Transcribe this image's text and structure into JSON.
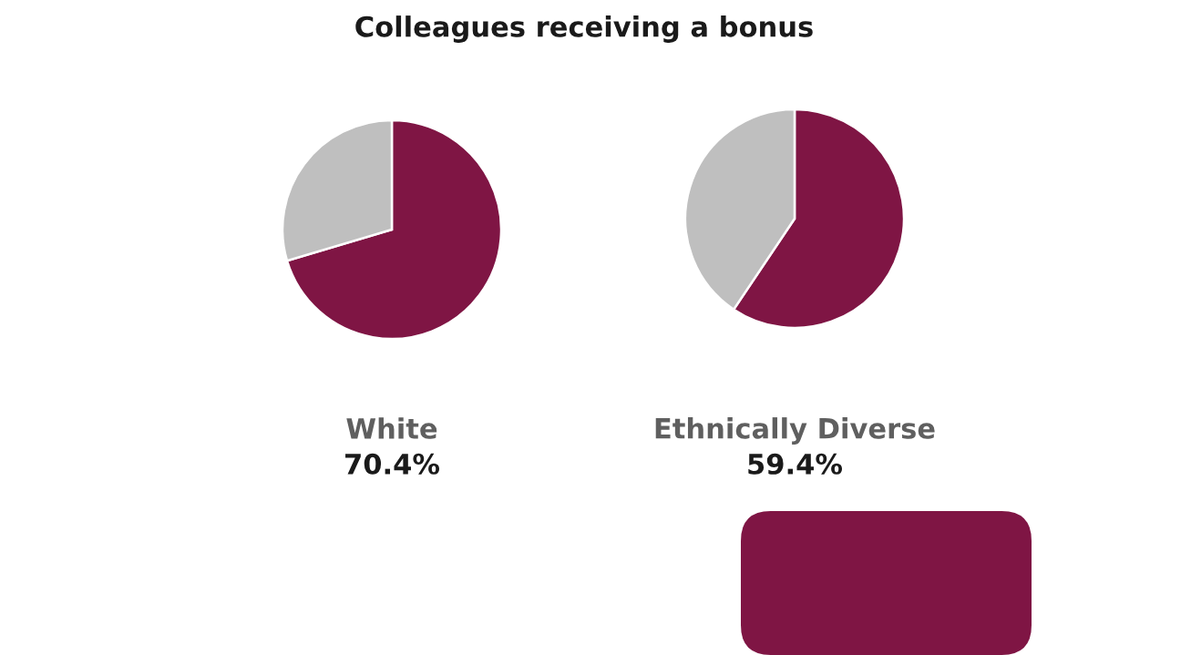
{
  "chart_data": [
    {
      "type": "pie",
      "title": "Colleagues receiving a bonus",
      "xlabel": "White",
      "categories": [
        null,
        null
      ],
      "values": [
        70.4,
        29.6
      ],
      "colors": [
        "#7f1544",
        "#bfbfbf"
      ],
      "annotations": [
        "70.4%"
      ]
    },
    {
      "type": "pie",
      "xlabel": "Ethnically Diverse",
      "categories": [
        null,
        null
      ],
      "values": [
        59.4,
        40.6
      ],
      "colors": [
        "#7f1544",
        "#bfbfbf"
      ],
      "annotations": [
        "59.4%"
      ]
    }
  ]
}
